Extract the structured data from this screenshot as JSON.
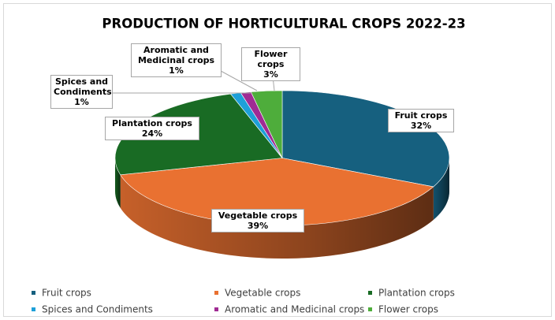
{
  "chart_data": {
    "type": "pie3d",
    "title": "PRODUCTION OF HORTICULTURAL CROPS 2022-23",
    "categories": [
      "Fruit crops",
      "Vegetable crops",
      "Plantation crops",
      "Spices and Condiments",
      "Aromatic and Medicinal crops",
      "Flower crops"
    ],
    "values": [
      32,
      39,
      24,
      1,
      1,
      3
    ],
    "value_labels": [
      "32%",
      "39%",
      "24%",
      "1%",
      "1%",
      "3%"
    ],
    "colors": [
      "#16607f",
      "#e97131",
      "#196b24",
      "#1ea0d8",
      "#a02b93",
      "#4ead3b"
    ],
    "legend": "bottom"
  }
}
